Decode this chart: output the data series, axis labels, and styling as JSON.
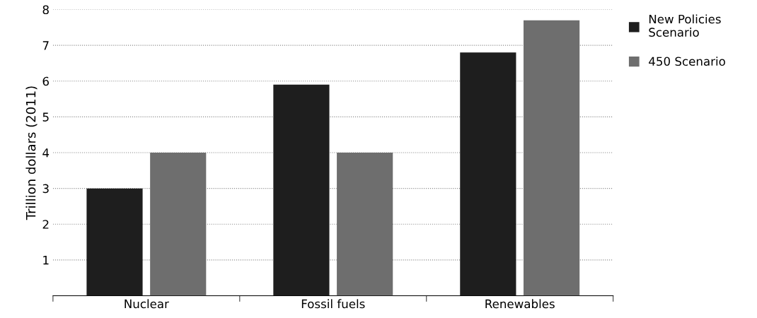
{
  "chart_data": {
    "type": "bar",
    "ylabel": "Trillion dollars (2011)",
    "categories": [
      "Nuclear",
      "Fossil fuels",
      "Renewables"
    ],
    "series": [
      {
        "name": "New Policies\nScenario",
        "color": "#1e1e1e",
        "values": [
          3.0,
          5.9,
          6.8
        ]
      },
      {
        "name": "450 Scenario",
        "color": "#6e6e6e",
        "values": [
          4.0,
          4.0,
          7.7
        ]
      }
    ],
    "ylim": [
      0,
      8
    ],
    "yticks": [
      1,
      2,
      3,
      4,
      5,
      6,
      7,
      8
    ],
    "grid": "y",
    "legend": "top right"
  }
}
